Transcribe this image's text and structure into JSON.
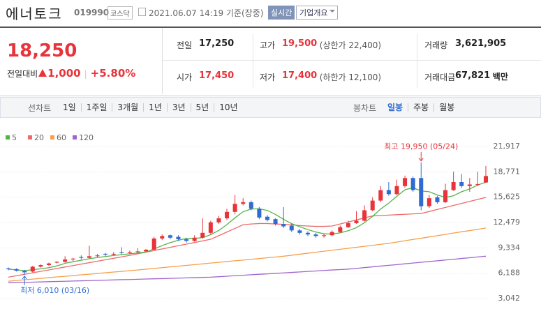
{
  "header": {
    "name": "에너토크",
    "code": "019990",
    "market": "코스닥",
    "datetime": "2021.06.07 14:19 기준(장중)",
    "realtime": "실시간",
    "company_info": "기업개요"
  },
  "quote": {
    "price": "18,250",
    "change_label": "전일대비",
    "change": "1,000",
    "change_rate": "+5.80%",
    "table": [
      [
        {
          "label": "전일",
          "value": "17,250"
        },
        {
          "label": "고가",
          "value": "19,500",
          "extra": "(상한가 22,400)"
        },
        {
          "label": "거래량",
          "value": "3,621,905"
        }
      ],
      [
        {
          "label": "시가",
          "value": "17,450"
        },
        {
          "label": "저가",
          "value": "17,400",
          "extra": "(하한가 12,100)"
        },
        {
          "label": "거래대금",
          "value": "67,821",
          "unit": "백만"
        }
      ]
    ]
  },
  "tabs": {
    "line_label": "선차트",
    "line_periods": [
      "1일",
      "1주일",
      "3개월",
      "1년",
      "3년",
      "5년",
      "10년"
    ],
    "candle_label": "봉차트",
    "candle_periods": [
      "일봉",
      "주봉",
      "월봉"
    ],
    "active_candle_period": 0
  },
  "chart_data": {
    "type": "candlestick",
    "up_color": "#e8333a",
    "down_color": "#2f6bd1",
    "candles": [
      [
        6800,
        6900,
        6550,
        6700
      ],
      [
        6700,
        6800,
        6400,
        6500
      ],
      [
        6500,
        6600,
        6010,
        6300
      ],
      [
        6400,
        7100,
        6300,
        7000
      ],
      [
        7000,
        7300,
        6900,
        7200
      ],
      [
        7200,
        7500,
        7100,
        7400
      ],
      [
        7500,
        7700,
        7400,
        7600
      ],
      [
        7600,
        8300,
        7500,
        7900
      ],
      [
        7900,
        8100,
        7700,
        8000
      ],
      [
        8200,
        8400,
        7900,
        8100
      ],
      [
        8100,
        9600,
        8000,
        8300
      ],
      [
        8300,
        8600,
        8200,
        8400
      ],
      [
        8600,
        8700,
        8300,
        8500
      ],
      [
        8500,
        8800,
        8400,
        8600
      ],
      [
        8800,
        9400,
        8500,
        8700
      ],
      [
        8700,
        9000,
        8600,
        8800
      ],
      [
        8800,
        9300,
        8700,
        8900
      ],
      [
        8900,
        9200,
        8800,
        9100
      ],
      [
        9100,
        10700,
        9000,
        10500
      ],
      [
        10500,
        11000,
        10300,
        10800
      ],
      [
        10900,
        11000,
        10400,
        10600
      ],
      [
        10700,
        10900,
        10200,
        10400
      ],
      [
        10400,
        10600,
        10000,
        10200
      ],
      [
        10200,
        10900,
        10100,
        10600
      ],
      [
        10600,
        13000,
        10500,
        11200
      ],
      [
        11200,
        12700,
        11000,
        12500
      ],
      [
        12500,
        13300,
        12300,
        13000
      ],
      [
        13000,
        14200,
        12800,
        13800
      ],
      [
        13800,
        15900,
        13500,
        14800
      ],
      [
        14800,
        15500,
        14600,
        15000
      ],
      [
        15000,
        15200,
        14000,
        14200
      ],
      [
        14200,
        14400,
        12900,
        13100
      ],
      [
        13200,
        13400,
        12600,
        12800
      ],
      [
        12900,
        13000,
        12100,
        12300
      ],
      [
        12300,
        14400,
        11800,
        12000
      ],
      [
        12100,
        12300,
        11300,
        11500
      ],
      [
        11500,
        11700,
        11000,
        11200
      ],
      [
        11200,
        11400,
        10800,
        11000
      ],
      [
        11000,
        11200,
        10600,
        10800
      ],
      [
        10800,
        11100,
        10600,
        10900
      ],
      [
        10900,
        11500,
        10800,
        11300
      ],
      [
        11300,
        12100,
        11200,
        11900
      ],
      [
        11900,
        12700,
        11800,
        12400
      ],
      [
        12400,
        13900,
        12300,
        12700
      ],
      [
        12700,
        14600,
        12600,
        14000
      ],
      [
        14000,
        15600,
        13900,
        15200
      ],
      [
        15200,
        17000,
        15000,
        16500
      ],
      [
        16500,
        17500,
        15800,
        16000
      ],
      [
        16000,
        17800,
        15900,
        17000
      ],
      [
        17000,
        18300,
        16800,
        18000
      ],
      [
        18000,
        18200,
        16300,
        16500
      ],
      [
        18000,
        19950,
        14000,
        14500
      ],
      [
        14500,
        15900,
        14300,
        15500
      ],
      [
        15600,
        15800,
        14800,
        15000
      ],
      [
        15000,
        17300,
        14900,
        16500
      ],
      [
        16500,
        18800,
        16400,
        17500
      ],
      [
        17500,
        18500,
        16800,
        17000
      ],
      [
        17000,
        18000,
        16300,
        17200
      ],
      [
        17200,
        18800,
        17000,
        17250
      ],
      [
        17450,
        19500,
        17400,
        18250
      ]
    ],
    "series": [
      {
        "name": "5",
        "color": "#55b348",
        "values": [
          6700,
          6600,
          6500,
          6630,
          6740,
          6880,
          7100,
          7420,
          7620,
          7800,
          7980,
          8140,
          8260,
          8380,
          8500,
          8600,
          8700,
          8820,
          9200,
          9620,
          9980,
          10280,
          10500,
          10520,
          10600,
          10980,
          11500,
          12220,
          13060,
          13820,
          14160,
          14180,
          13980,
          13480,
          12880,
          12340,
          11960,
          11600,
          11300,
          11080,
          11040,
          11200,
          11460,
          11840,
          12460,
          13240,
          14160,
          14880,
          15740,
          16540,
          16800,
          16400,
          16300,
          15900,
          15600,
          15800,
          16300,
          16640,
          17140,
          17480
        ]
      },
      {
        "name": "20",
        "color": "#ec6a6a",
        "values": [
          5700,
          5880,
          6060,
          6240,
          6420,
          6600,
          6780,
          6960,
          7140,
          7320,
          7500,
          7680,
          7860,
          8040,
          8220,
          8400,
          8600,
          8800,
          9000,
          9200,
          9400,
          9600,
          9800,
          10000,
          10200,
          10400,
          10850,
          11300,
          11750,
          12200,
          12300,
          12350,
          12350,
          12300,
          12250,
          12200,
          12100,
          12050,
          12000,
          12000,
          12050,
          12300,
          12550,
          12800,
          13050,
          13300,
          13350,
          13400,
          13450,
          13500,
          13550,
          13600,
          13850,
          14100,
          14350,
          14600,
          14850,
          15100,
          15350,
          15600
        ]
      },
      {
        "name": "60",
        "color": "#f5a04a",
        "values": [
          5200,
          5290,
          5380,
          5460,
          5550,
          5640,
          5730,
          5810,
          5900,
          5990,
          6070,
          6160,
          6250,
          6340,
          6420,
          6510,
          6600,
          6690,
          6790,
          6880,
          6980,
          7070,
          7160,
          7260,
          7350,
          7450,
          7540,
          7640,
          7730,
          7820,
          7920,
          8010,
          8110,
          8200,
          8300,
          8420,
          8550,
          8670,
          8790,
          8920,
          9040,
          9160,
          9280,
          9410,
          9530,
          9650,
          9780,
          9900,
          10060,
          10220,
          10380,
          10530,
          10690,
          10850,
          11010,
          11170,
          11330,
          11480,
          11640,
          11800
        ]
      },
      {
        "name": "120",
        "color": "#a066cc",
        "values": [
          5000,
          5030,
          5060,
          5080,
          5110,
          5140,
          5170,
          5190,
          5220,
          5250,
          5280,
          5300,
          5330,
          5360,
          5390,
          5410,
          5440,
          5470,
          5500,
          5520,
          5550,
          5580,
          5610,
          5640,
          5670,
          5700,
          5760,
          5820,
          5880,
          5940,
          6000,
          6060,
          6110,
          6170,
          6230,
          6290,
          6350,
          6410,
          6470,
          6530,
          6590,
          6640,
          6700,
          6790,
          6890,
          6980,
          7080,
          7170,
          7260,
          7360,
          7450,
          7550,
          7640,
          7730,
          7830,
          7920,
          8020,
          8110,
          8210,
          8300
        ]
      }
    ],
    "ylim": [
      2010,
      23040
    ],
    "yticks": [
      {
        "value": 3042,
        "label": "3,042"
      },
      {
        "value": 6188,
        "label": "6,188"
      },
      {
        "value": 9334,
        "label": "9,334"
      },
      {
        "value": 12479,
        "label": "12,479"
      },
      {
        "value": 15625,
        "label": "15,625"
      },
      {
        "value": 18771,
        "label": "18,771"
      },
      {
        "value": 21917,
        "label": "21,917"
      }
    ],
    "grid": true,
    "high_label": "최고 19,950 (05/24)",
    "low_label": "최저 6,010 (03/16)"
  }
}
